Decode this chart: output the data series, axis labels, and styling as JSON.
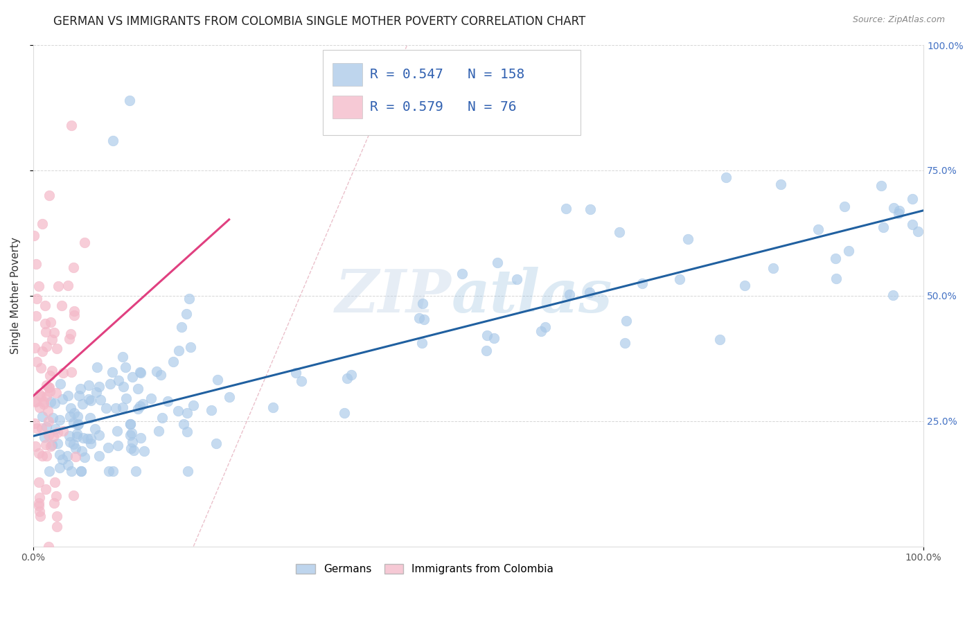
{
  "title": "GERMAN VS IMMIGRANTS FROM COLOMBIA SINGLE MOTHER POVERTY CORRELATION CHART",
  "source": "Source: ZipAtlas.com",
  "ylabel": "Single Mother Poverty",
  "xlim": [
    0,
    1
  ],
  "ylim": [
    0,
    1
  ],
  "x_tick_labels": [
    "0.0%",
    "100.0%"
  ],
  "y_tick_labels": [
    "25.0%",
    "50.0%",
    "75.0%",
    "100.0%"
  ],
  "y_tick_positions": [
    0.25,
    0.5,
    0.75,
    1.0
  ],
  "watermark_zip": "ZIP",
  "watermark_atlas": "atlas",
  "blue_color": "#a8c8e8",
  "pink_color": "#f4b8c8",
  "blue_line_color": "#2060a0",
  "pink_line_color": "#e04080",
  "blue_R": 0.547,
  "blue_N": 158,
  "pink_R": 0.579,
  "pink_N": 76,
  "blue_intercept": 0.22,
  "blue_slope": 0.45,
  "pink_intercept": 0.3,
  "pink_slope": 1.6,
  "title_fontsize": 12,
  "axis_label_fontsize": 11,
  "tick_fontsize": 10,
  "legend_stat_fontsize": 14,
  "legend_label_fontsize": 11
}
